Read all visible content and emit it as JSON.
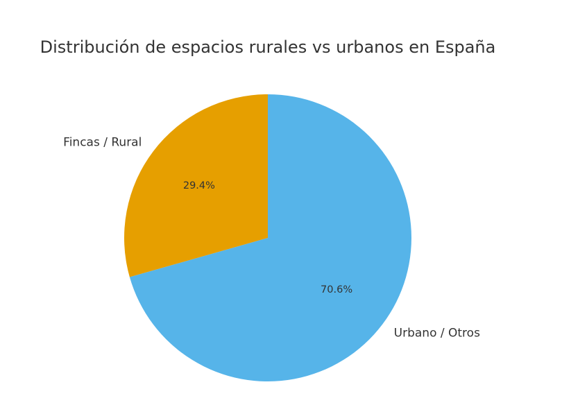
{
  "chart_data": {
    "type": "pie",
    "title": "Distribución de espacios rurales vs urbanos en España",
    "slices": [
      {
        "label": "Urbano / Otros",
        "value": 70.6,
        "display": "70.6%",
        "color": "#56b4e9"
      },
      {
        "label": "Fincas / Rural",
        "value": 29.4,
        "display": "29.4%",
        "color": "#e69f00"
      }
    ],
    "start_angle": "top, clockwise",
    "legend": "none"
  }
}
